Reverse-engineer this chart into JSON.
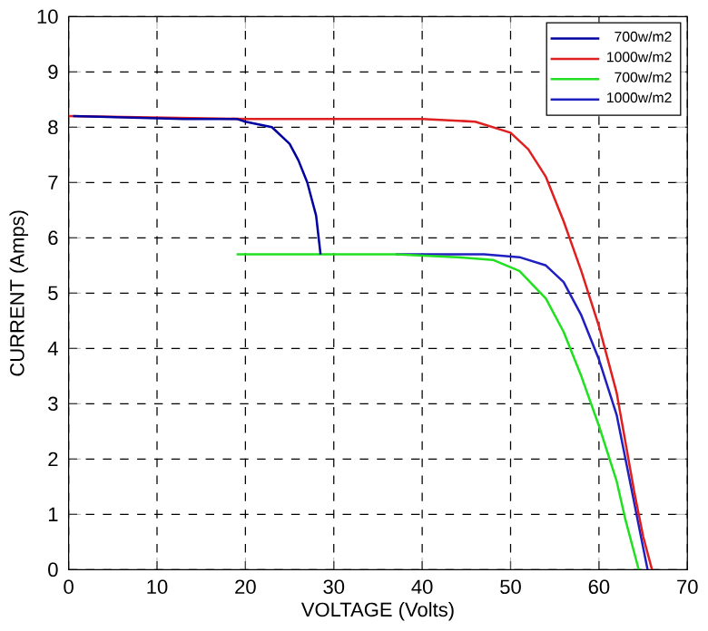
{
  "chart_data": {
    "type": "line",
    "xlabel": "VOLTAGE (Volts)",
    "ylabel": "CURRENT (Amps)",
    "xlim": [
      0,
      70
    ],
    "ylim": [
      0,
      10
    ],
    "xticks": [
      0,
      10,
      20,
      30,
      40,
      50,
      60,
      70
    ],
    "yticks": [
      0,
      1,
      2,
      3,
      4,
      5,
      6,
      7,
      8,
      9,
      10
    ],
    "grid": true,
    "legend": "top right",
    "line_style": "solid",
    "marker": "none",
    "series": [
      {
        "name": "700w/m2",
        "color": "#0000a0",
        "x": [
          0.5,
          13,
          19,
          20,
          23,
          25,
          26,
          27,
          28,
          28.5
        ],
        "values": [
          8.2,
          8.15,
          8.15,
          8.1,
          8.0,
          7.7,
          7.4,
          7.0,
          6.4,
          5.7
        ]
      },
      {
        "name": "1000w/m2",
        "color": "#e02020",
        "x": [
          0,
          20,
          40,
          46,
          50,
          52,
          54,
          56,
          58,
          60,
          62,
          63,
          64,
          65,
          66
        ],
        "values": [
          8.2,
          8.15,
          8.15,
          8.1,
          7.9,
          7.6,
          7.1,
          6.3,
          5.4,
          4.4,
          3.2,
          2.3,
          1.4,
          0.6,
          0
        ]
      },
      {
        "name": "700w/m2",
        "color": "#20e020",
        "x": [
          19,
          37,
          44,
          48,
          51,
          54,
          56,
          58,
          60,
          62,
          63,
          64,
          64.5
        ],
        "values": [
          5.7,
          5.7,
          5.65,
          5.6,
          5.4,
          4.9,
          4.3,
          3.5,
          2.6,
          1.6,
          0.9,
          0.3,
          0
        ]
      },
      {
        "name": "1000w/m2",
        "color": "#2020c0",
        "x": [
          37,
          47,
          51,
          54,
          56,
          58,
          60,
          62,
          63,
          64,
          65,
          65.5
        ],
        "values": [
          5.7,
          5.7,
          5.65,
          5.5,
          5.2,
          4.6,
          3.8,
          2.8,
          2.0,
          1.2,
          0.4,
          0
        ]
      }
    ]
  }
}
